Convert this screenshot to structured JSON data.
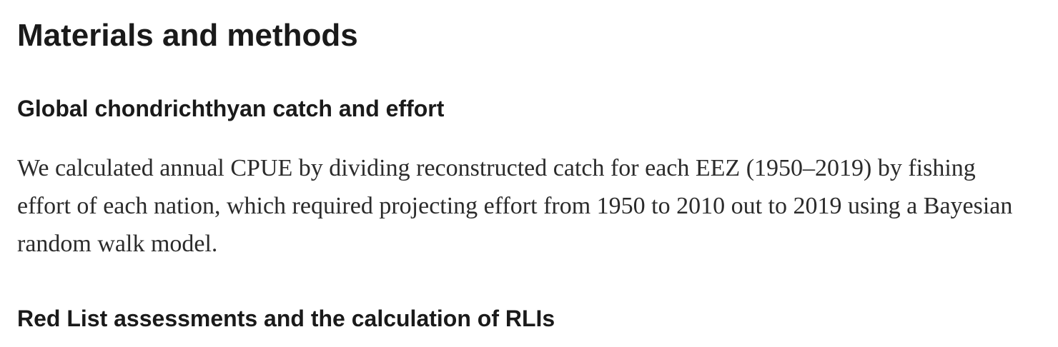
{
  "document": {
    "section_title": "Materials and methods",
    "subsections": [
      {
        "title": "Global chondrichthyan catch and effort",
        "paragraph": "We calculated annual CPUE by dividing reconstructed catch for each EEZ (1950–2019) by fishing effort of each nation, which required projecting effort from 1950 to 2010 out to 2019 using a Bayesian random walk model."
      },
      {
        "title": "Red List assessments and the calculation of RLIs"
      }
    ]
  }
}
